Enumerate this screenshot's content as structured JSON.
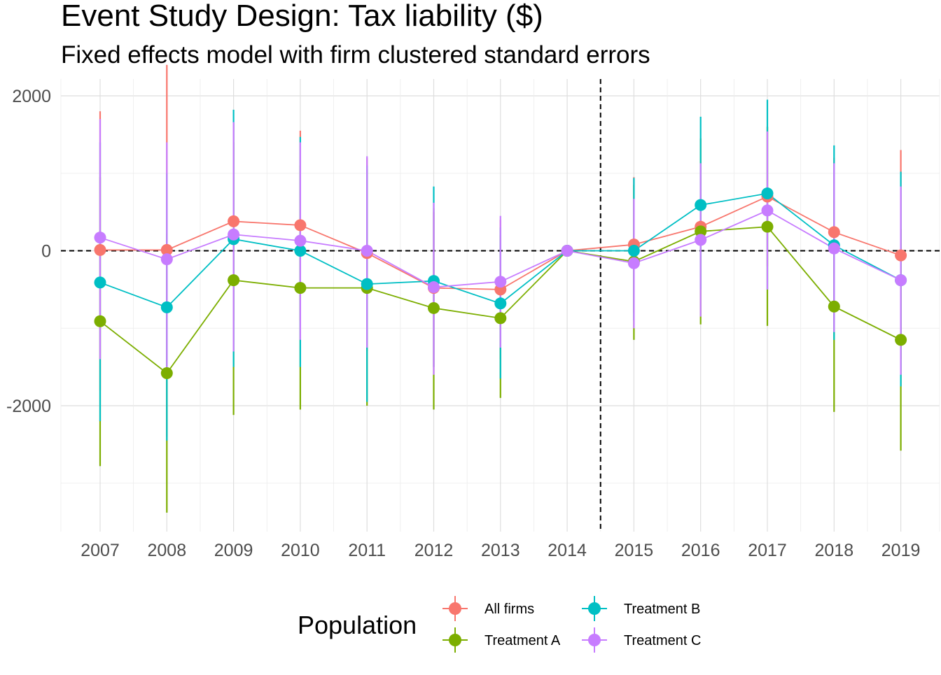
{
  "chart_data": {
    "type": "line",
    "title": "Event Study Design: Tax liability  ($)",
    "subtitle": "Fixed effects model with firm clustered standard errors",
    "xlabel": "",
    "ylabel": "",
    "x": [
      "2007",
      "2008",
      "2009",
      "2010",
      "2011",
      "2012",
      "2013",
      "2014",
      "2015",
      "2016",
      "2017",
      "2018",
      "2019"
    ],
    "ylim": [
      -3600,
      2200
    ],
    "y_ticks": [
      2000,
      0,
      -2000
    ],
    "y_tick_labels": [
      "2000",
      "0",
      "-2000"
    ],
    "grid": true,
    "reference_lines": {
      "horizontal_y": 0,
      "vertical_between": [
        "2014",
        "2015"
      ],
      "style": "dashed"
    },
    "legend": {
      "title": "Population",
      "position": "bottom"
    },
    "series": [
      {
        "name": "All firms",
        "color": "#F8766D",
        "values": [
          10,
          10,
          380,
          330,
          -30,
          -480,
          -500,
          0,
          80,
          310,
          700,
          240,
          -60
        ],
        "lower": [
          -1800,
          -2400,
          -900,
          -900,
          -1300,
          -1500,
          -1400,
          0,
          -800,
          -500,
          -200,
          -700,
          -1400
        ],
        "upper": [
          1800,
          2400,
          1650,
          1550,
          1200,
          500,
          400,
          0,
          950,
          1150,
          1600,
          1200,
          1300
        ]
      },
      {
        "name": "Treatment A",
        "color": "#7CAE00",
        "values": [
          -910,
          -1580,
          -380,
          -480,
          -480,
          -740,
          -870,
          0,
          -140,
          250,
          310,
          -720,
          -1150
        ],
        "lower": [
          -2780,
          -3380,
          -2120,
          -2050,
          -2000,
          -2050,
          -1900,
          0,
          -1150,
          -950,
          -970,
          -2080,
          -2580
        ],
        "upper": [
          950,
          220,
          1400,
          1100,
          1050,
          550,
          200,
          0,
          850,
          1450,
          1600,
          650,
          280
        ]
      },
      {
        "name": "Treatment B",
        "color": "#00BFC4",
        "values": [
          -410,
          -730,
          150,
          0,
          -430,
          -390,
          -680,
          0,
          0,
          590,
          740,
          70,
          -380
        ],
        "lower": [
          -2200,
          -2450,
          -1500,
          -1500,
          -1950,
          -1500,
          -1650,
          0,
          -900,
          -500,
          -500,
          -1150,
          -1750
        ],
        "upper": [
          1400,
          1000,
          1820,
          1470,
          1100,
          830,
          300,
          0,
          940,
          1730,
          1950,
          1360,
          1020
        ]
      },
      {
        "name": "Treatment C",
        "color": "#C77CFF",
        "values": [
          170,
          -110,
          210,
          130,
          0,
          -470,
          -400,
          0,
          -160,
          140,
          520,
          30,
          -380
        ],
        "lower": [
          -1400,
          -1650,
          -1300,
          -1150,
          -1250,
          -1600,
          -1250,
          0,
          -1000,
          -850,
          -500,
          -1050,
          -1600
        ],
        "upper": [
          1700,
          1400,
          1660,
          1400,
          1220,
          620,
          450,
          0,
          670,
          1130,
          1540,
          1130,
          830
        ]
      }
    ]
  }
}
